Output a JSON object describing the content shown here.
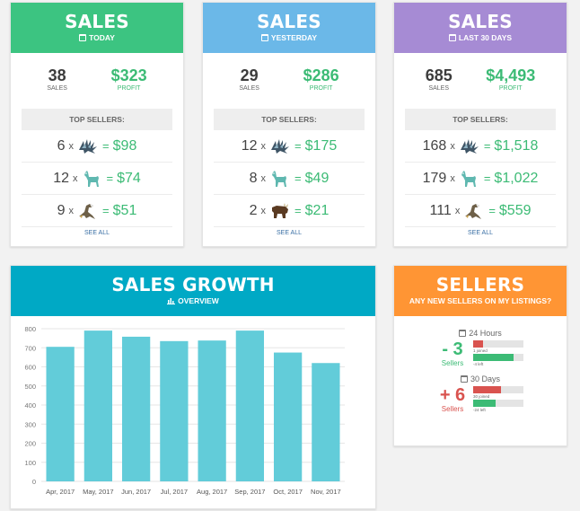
{
  "sales_cards": [
    {
      "title": "SALES",
      "period": "TODAY",
      "color": "#3cc481",
      "sales_num": "38",
      "sales_label": "SALES",
      "profit_num": "$323",
      "profit_label": "PROFIT",
      "top_label": "TOP SELLERS:",
      "rows": [
        {
          "qty": "6",
          "x": "x",
          "icon": "dragon-claw-icon",
          "eq": "=",
          "amount": "$98"
        },
        {
          "qty": "12",
          "x": "x",
          "icon": "llama-icon",
          "eq": "=",
          "amount": "$74"
        },
        {
          "qty": "9",
          "x": "x",
          "icon": "eagle-icon",
          "eq": "=",
          "amount": "$51"
        }
      ],
      "see_all": "SEE ALL"
    },
    {
      "title": "SALES",
      "period": "YESTERDAY",
      "color": "#6bb8e8",
      "sales_num": "29",
      "sales_label": "SALES",
      "profit_num": "$286",
      "profit_label": "PROFIT",
      "top_label": "TOP SELLERS:",
      "rows": [
        {
          "qty": "12",
          "x": "x",
          "icon": "dragon-claw-icon",
          "eq": "=",
          "amount": "$175"
        },
        {
          "qty": "8",
          "x": "x",
          "icon": "llama-icon",
          "eq": "=",
          "amount": "$49"
        },
        {
          "qty": "2",
          "x": "x",
          "icon": "bull-icon",
          "eq": "=",
          "amount": "$21"
        }
      ],
      "see_all": "SEE ALL"
    },
    {
      "title": "SALES",
      "period": "LAST 30 DAYS",
      "color": "#a68bd4",
      "sales_num": "685",
      "sales_label": "SALES",
      "profit_num": "$4,493",
      "profit_label": "PROFIT",
      "top_label": "TOP SELLERS:",
      "rows": [
        {
          "qty": "168",
          "x": "x",
          "icon": "dragon-claw-icon",
          "eq": "=",
          "amount": "$1,518"
        },
        {
          "qty": "179",
          "x": "x",
          "icon": "llama-icon",
          "eq": "=",
          "amount": "$1,022"
        },
        {
          "qty": "111",
          "x": "x",
          "icon": "eagle-icon",
          "eq": "=",
          "amount": "$559"
        }
      ],
      "see_all": "SEE ALL"
    }
  ],
  "growth": {
    "title": "SALES GROWTH",
    "subtitle": "OVERVIEW",
    "color": "#00a9c5"
  },
  "chart_data": {
    "type": "bar",
    "categories": [
      "Apr, 2017",
      "May, 2017",
      "Jun, 2017",
      "Jul, 2017",
      "Aug, 2017",
      "Sep, 2017",
      "Oct, 2017",
      "Nov, 2017"
    ],
    "values": [
      705,
      790,
      758,
      735,
      738,
      790,
      675,
      620
    ],
    "ylim": [
      0,
      800
    ],
    "yticks": [
      0,
      100,
      200,
      300,
      400,
      500,
      600,
      700,
      800
    ],
    "grid": true,
    "bar_color": "#62ccd9"
  },
  "sellers": {
    "title": "SELLERS",
    "subtitle": "ANY NEW SELLERS ON MY LISTINGS?",
    "color": "#ff9534",
    "periods": [
      {
        "label": "24 Hours",
        "delta": "- 3",
        "delta_label": "Sellers",
        "delta_color": "#3cbb75",
        "joined_text": "1 joined",
        "joined_fraction": 0.2,
        "joined_color": "#d9534f",
        "left_text": "-4 left",
        "left_fraction": 0.8,
        "left_color": "#3cbb75"
      },
      {
        "label": "30 Days",
        "delta": "+ 6",
        "delta_label": "Sellers",
        "delta_color": "#d9534f",
        "joined_text": "30 joined",
        "joined_fraction": 0.55,
        "joined_color": "#d9534f",
        "left_text": "-24 left",
        "left_fraction": 0.45,
        "left_color": "#3cbb75"
      }
    ]
  }
}
